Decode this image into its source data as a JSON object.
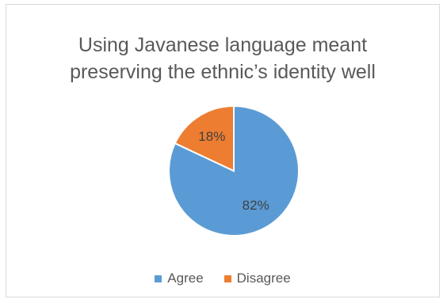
{
  "chart_data": {
    "type": "pie",
    "title": "Using Javanese language meant\npreserving the ethnic’s identity well",
    "categories": [
      "Agree",
      "Disagree"
    ],
    "values": [
      82,
      18
    ],
    "data_labels": [
      "82%",
      "18%"
    ],
    "colors": [
      "#5b9bd5",
      "#ed7d31"
    ],
    "legend_position": "bottom"
  }
}
